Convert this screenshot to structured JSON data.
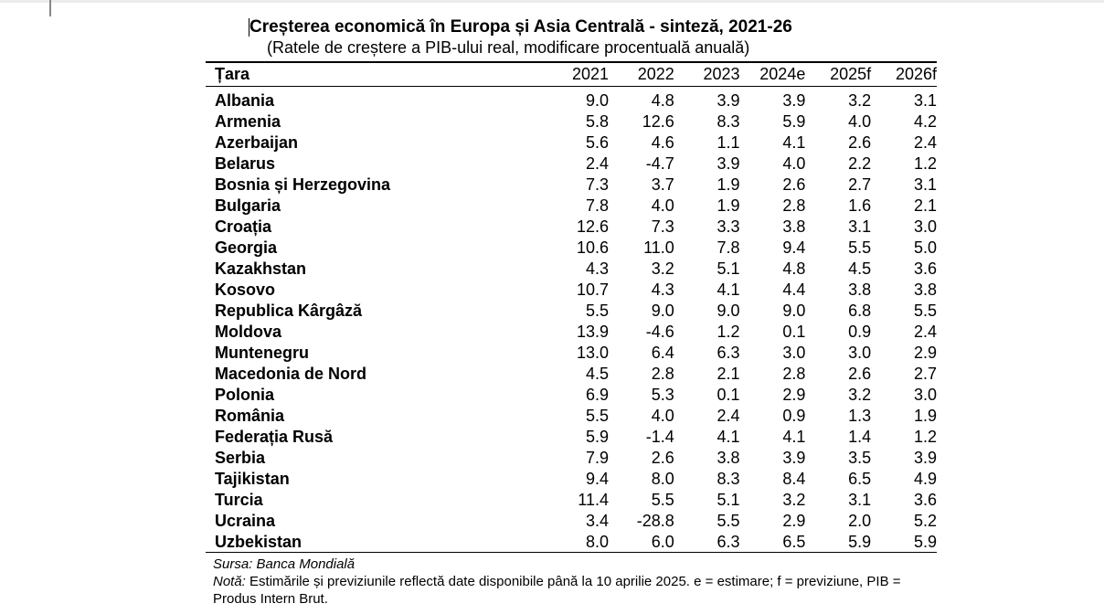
{
  "title": "Creșterea economică în Europa și Asia Centrală - sinteză, 2021-26",
  "subtitle": "(Ratele de creștere a PIB-ului real, modificare procentuală anuală)",
  "table": {
    "headers": [
      "Țara",
      "2021",
      "2022",
      "2023",
      "2024e",
      "2025f",
      "2026f"
    ],
    "rows": [
      [
        "Albania",
        "9.0",
        "4.8",
        "3.9",
        "3.9",
        "3.2",
        "3.1"
      ],
      [
        "Armenia",
        "5.8",
        "12.6",
        "8.3",
        "5.9",
        "4.0",
        "4.2"
      ],
      [
        "Azerbaijan",
        "5.6",
        "4.6",
        "1.1",
        "4.1",
        "2.6",
        "2.4"
      ],
      [
        "Belarus",
        "2.4",
        "-4.7",
        "3.9",
        "4.0",
        "2.2",
        "1.2"
      ],
      [
        "Bosnia și Herzegovina",
        "7.3",
        "3.7",
        "1.9",
        "2.6",
        "2.7",
        "3.1"
      ],
      [
        "Bulgaria",
        "7.8",
        "4.0",
        "1.9",
        "2.8",
        "1.6",
        "2.1"
      ],
      [
        "Croația",
        "12.6",
        "7.3",
        "3.3",
        "3.8",
        "3.1",
        "3.0"
      ],
      [
        "Georgia",
        "10.6",
        "11.0",
        "7.8",
        "9.4",
        "5.5",
        "5.0"
      ],
      [
        "Kazakhstan",
        "4.3",
        "3.2",
        "5.1",
        "4.8",
        "4.5",
        "3.6"
      ],
      [
        "Kosovo",
        "10.7",
        "4.3",
        "4.1",
        "4.4",
        "3.8",
        "3.8"
      ],
      [
        "Republica Kârgâză",
        "5.5",
        "9.0",
        "9.0",
        "9.0",
        "6.8",
        "5.5"
      ],
      [
        "Moldova",
        "13.9",
        "-4.6",
        "1.2",
        "0.1",
        "0.9",
        "2.4"
      ],
      [
        "Muntenegru",
        "13.0",
        "6.4",
        "6.3",
        "3.0",
        "3.0",
        "2.9"
      ],
      [
        "Macedonia de Nord",
        "4.5",
        "2.8",
        "2.1",
        "2.8",
        "2.6",
        "2.7"
      ],
      [
        "Polonia",
        "6.9",
        "5.3",
        "0.1",
        "2.9",
        "3.2",
        "3.0"
      ],
      [
        "România",
        "5.5",
        "4.0",
        "2.4",
        "0.9",
        "1.3",
        "1.9"
      ],
      [
        "Federația Rusă",
        "5.9",
        "-1.4",
        "4.1",
        "4.1",
        "1.4",
        "1.2"
      ],
      [
        "Serbia",
        "7.9",
        "2.6",
        "3.8",
        "3.9",
        "3.5",
        "3.9"
      ],
      [
        "Tajikistan",
        "9.4",
        "8.0",
        "8.3",
        "8.4",
        "6.5",
        "4.9"
      ],
      [
        "Turcia",
        "11.4",
        "5.5",
        "5.1",
        "3.2",
        "3.1",
        "3.6"
      ],
      [
        "Ucraina",
        "3.4",
        "-28.8",
        "5.5",
        "2.9",
        "2.0",
        "5.2"
      ],
      [
        "Uzbekistan",
        "8.0",
        "6.0",
        "6.3",
        "6.5",
        "5.9",
        "5.9"
      ]
    ]
  },
  "source": {
    "label": "Sursa:",
    "text": " Banca Mondială"
  },
  "note": {
    "label": "Notă:",
    "text": " Estimările și previziunile reflectă date disponibile până la 10 aprilie 2025. e = estimare; f = previziune, PIB = Produs Intern Brut."
  }
}
